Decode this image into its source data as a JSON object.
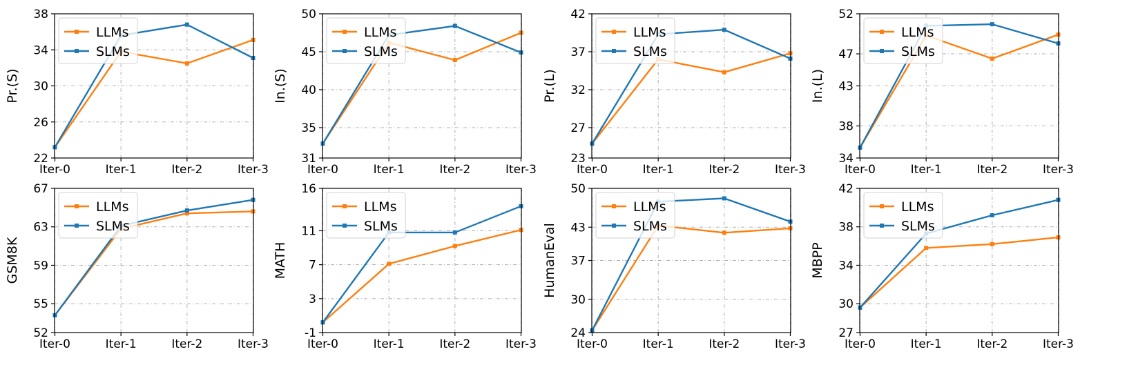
{
  "colors": {
    "LLMs": "#ff7f0e",
    "SLMs": "#1f77b4"
  },
  "chart_data": [
    {
      "type": "line",
      "categories": [
        "Iter-0",
        "Iter-1",
        "Iter-2",
        "Iter-3"
      ],
      "ylabel": "Pr.(S)",
      "ylim": [
        22,
        38
      ],
      "yticks": [
        "22",
        "26",
        "30",
        "34",
        "38"
      ],
      "grid": true,
      "legend": "upper-left",
      "series": [
        {
          "name": "LLMs",
          "values": [
            23.2,
            33.8,
            32.5,
            35.1
          ]
        },
        {
          "name": "SLMs",
          "values": [
            23.2,
            35.6,
            36.8,
            33.1
          ]
        }
      ]
    },
    {
      "type": "line",
      "categories": [
        "Iter-0",
        "Iter-1",
        "Iter-2",
        "Iter-3"
      ],
      "ylabel": "In.(S)",
      "ylim": [
        31,
        50
      ],
      "yticks": [
        "31",
        "35",
        "40",
        "45",
        "50"
      ],
      "grid": true,
      "legend": "upper-left",
      "series": [
        {
          "name": "LLMs",
          "values": [
            32.9,
            46.2,
            43.9,
            47.5
          ]
        },
        {
          "name": "SLMs",
          "values": [
            32.9,
            47.2,
            48.4,
            44.9
          ]
        }
      ]
    },
    {
      "type": "line",
      "categories": [
        "Iter-0",
        "Iter-1",
        "Iter-2",
        "Iter-3"
      ],
      "ylabel": "Pr.(L)",
      "ylim": [
        23,
        42
      ],
      "yticks": [
        "23",
        "27",
        "32",
        "37",
        "42"
      ],
      "grid": true,
      "legend": "upper-left",
      "series": [
        {
          "name": "LLMs",
          "values": [
            24.9,
            36.0,
            34.3,
            36.8
          ]
        },
        {
          "name": "SLMs",
          "values": [
            24.9,
            39.3,
            39.9,
            36.1
          ]
        }
      ]
    },
    {
      "type": "line",
      "categories": [
        "Iter-0",
        "Iter-1",
        "Iter-2",
        "Iter-3"
      ],
      "ylabel": "In.(L)",
      "ylim": [
        34,
        52
      ],
      "yticks": [
        "34",
        "38",
        "43",
        "47",
        "52"
      ],
      "grid": true,
      "legend": "upper-left",
      "series": [
        {
          "name": "LLMs",
          "values": [
            35.3,
            49.3,
            46.4,
            49.4
          ]
        },
        {
          "name": "SLMs",
          "values": [
            35.3,
            50.5,
            50.7,
            48.3
          ]
        }
      ]
    },
    {
      "type": "line",
      "categories": [
        "Iter-0",
        "Iter-1",
        "Iter-2",
        "Iter-3"
      ],
      "ylabel": "GSM8K",
      "ylim": [
        52,
        67
      ],
      "yticks": [
        "52",
        "55",
        "59",
        "63",
        "67"
      ],
      "grid": true,
      "legend": "upper-left",
      "series": [
        {
          "name": "LLMs",
          "values": [
            53.8,
            62.8,
            64.4,
            64.6
          ]
        },
        {
          "name": "SLMs",
          "values": [
            53.8,
            63.1,
            64.7,
            65.8
          ]
        }
      ]
    },
    {
      "type": "line",
      "categories": [
        "Iter-0",
        "Iter-1",
        "Iter-2",
        "Iter-3"
      ],
      "ylabel": "MATH",
      "ylim": [
        -1,
        16
      ],
      "yticks": [
        "-1",
        "3",
        "7",
        "11",
        "16"
      ],
      "grid": true,
      "legend": "upper-left",
      "series": [
        {
          "name": "LLMs",
          "values": [
            0.2,
            7.1,
            9.2,
            11.1
          ]
        },
        {
          "name": "SLMs",
          "values": [
            0.2,
            10.8,
            10.8,
            13.9
          ]
        }
      ]
    },
    {
      "type": "line",
      "categories": [
        "Iter-0",
        "Iter-1",
        "Iter-2",
        "Iter-3"
      ],
      "ylabel": "HumanEval",
      "ylim": [
        24,
        50
      ],
      "yticks": [
        "24",
        "30",
        "37",
        "43",
        "50"
      ],
      "grid": true,
      "legend": "upper-left",
      "series": [
        {
          "name": "LLMs",
          "values": [
            24.4,
            43.3,
            42.0,
            42.8
          ]
        },
        {
          "name": "SLMs",
          "values": [
            24.4,
            47.6,
            48.2,
            44.0
          ]
        }
      ]
    },
    {
      "type": "line",
      "categories": [
        "Iter-0",
        "Iter-1",
        "Iter-2",
        "Iter-3"
      ],
      "ylabel": "MBPP",
      "ylim": [
        27,
        42
      ],
      "yticks": [
        "27",
        "30",
        "34",
        "38",
        "42"
      ],
      "grid": true,
      "legend": "upper-left",
      "series": [
        {
          "name": "LLMs",
          "values": [
            29.6,
            35.8,
            36.2,
            36.9
          ]
        },
        {
          "name": "SLMs",
          "values": [
            29.6,
            37.3,
            39.2,
            40.8
          ]
        }
      ]
    }
  ]
}
